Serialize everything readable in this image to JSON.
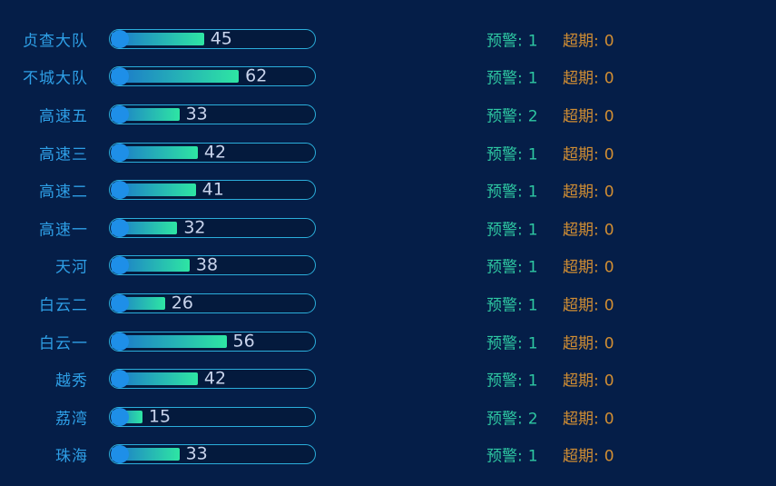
{
  "page": {
    "background_color": "#051e48"
  },
  "colors": {
    "row_label_text": "#2e9fe6",
    "track_border": "#2baedb",
    "bar_cap_dot": "#1e8fe8",
    "bar_gradient_start": "#1b74cc",
    "bar_gradient_end": "#2ee6a3",
    "bar_value_text": "#c9d4ec",
    "warning_text": "#2ec7a2",
    "overdue_text": "#d18e33"
  },
  "labels": {
    "warning": "预警:",
    "overdue": "超期:"
  },
  "rows": [
    {
      "label": "贞查大队",
      "value": 45,
      "warning": 1,
      "overdue": 0
    },
    {
      "label": "不城大队",
      "value": 62,
      "warning": 1,
      "overdue": 0
    },
    {
      "label": "高速五",
      "value": 33,
      "warning": 2,
      "overdue": 0
    },
    {
      "label": "高速三",
      "value": 42,
      "warning": 1,
      "overdue": 0
    },
    {
      "label": "高速二",
      "value": 41,
      "warning": 1,
      "overdue": 0
    },
    {
      "label": "高速一",
      "value": 32,
      "warning": 1,
      "overdue": 0
    },
    {
      "label": "天河",
      "value": 38,
      "warning": 1,
      "overdue": 0
    },
    {
      "label": "白云二",
      "value": 26,
      "warning": 1,
      "overdue": 0
    },
    {
      "label": "白云一",
      "value": 56,
      "warning": 1,
      "overdue": 0
    },
    {
      "label": "越秀",
      "value": 42,
      "warning": 1,
      "overdue": 0
    },
    {
      "label": "荔湾",
      "value": 15,
      "warning": 2,
      "overdue": 0
    },
    {
      "label": "珠海",
      "value": 33,
      "warning": 1,
      "overdue": 0
    }
  ],
  "chart_data": {
    "type": "bar",
    "orientation": "horizontal",
    "categories": [
      "贞查大队",
      "不城大队",
      "高速五",
      "高速三",
      "高速二",
      "高速一",
      "天河",
      "白云二",
      "白云一",
      "越秀",
      "荔湾",
      "珠海"
    ],
    "series": [
      {
        "name": "value",
        "values": [
          45,
          62,
          33,
          42,
          41,
          32,
          38,
          26,
          56,
          42,
          15,
          33
        ]
      },
      {
        "name": "预警",
        "values": [
          1,
          1,
          2,
          1,
          1,
          1,
          1,
          1,
          1,
          1,
          2,
          1
        ]
      },
      {
        "name": "超期",
        "values": [
          0,
          0,
          0,
          0,
          0,
          0,
          0,
          0,
          0,
          0,
          0,
          0
        ]
      }
    ],
    "xlim": [
      0,
      100
    ],
    "grid": false,
    "legend": false,
    "title": "",
    "xlabel": "",
    "ylabel": ""
  }
}
